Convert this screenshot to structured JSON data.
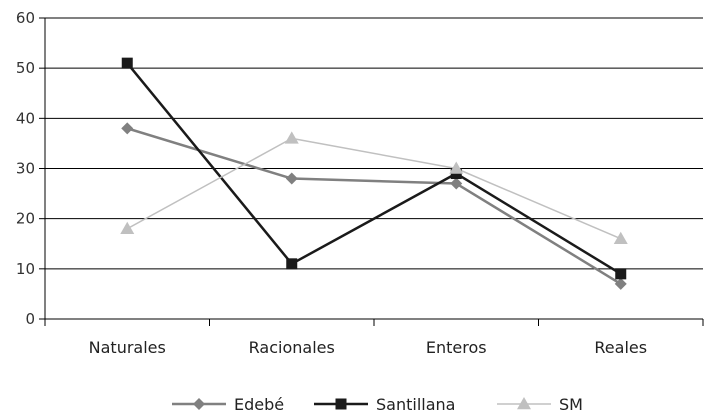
{
  "chart_data": {
    "type": "line",
    "categories": [
      "Naturales",
      "Racionales",
      "Enteros",
      "Reales"
    ],
    "ylim": [
      0,
      60
    ],
    "yticks": [
      0,
      10,
      20,
      30,
      40,
      50,
      60
    ],
    "grid": true,
    "legend_position": "bottom",
    "series": [
      {
        "name": "Edebé",
        "values": [
          38,
          28,
          27,
          7
        ],
        "color": "#808080",
        "marker": "diamond",
        "stroke_width": 2.5
      },
      {
        "name": "Santillana",
        "values": [
          51,
          11,
          29,
          9
        ],
        "color": "#1a1a1a",
        "marker": "square",
        "stroke_width": 2.5
      },
      {
        "name": "SM",
        "values": [
          18,
          36,
          30,
          16
        ],
        "color": "#c0c0c0",
        "marker": "triangle",
        "stroke_width": 1.5
      }
    ]
  }
}
